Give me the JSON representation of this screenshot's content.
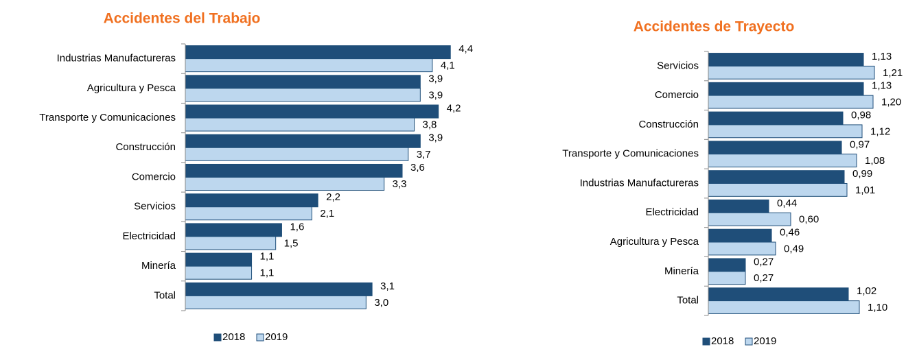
{
  "chart_data": [
    {
      "type": "bar",
      "orientation": "horizontal",
      "title": "Accidentes del Trabajo",
      "categories": [
        "Industrias Manufactureras",
        "Agricultura y Pesca",
        "Transporte y Comunicaciones",
        "Construcción",
        "Comercio",
        "Servicios",
        "Electricidad",
        "Minería",
        "Total"
      ],
      "series": [
        {
          "name": "2018",
          "color": "#1f4e79",
          "values": [
            4.4,
            3.9,
            4.2,
            3.9,
            3.6,
            2.2,
            1.6,
            1.1,
            3.1
          ],
          "value_labels": [
            "4,4",
            "3,9",
            "4,2",
            "3,9",
            "3,6",
            "2,2",
            "1,6",
            "1,1",
            "3,1"
          ]
        },
        {
          "name": "2019",
          "color": "#bdd7ee",
          "values": [
            4.1,
            3.9,
            3.8,
            3.7,
            3.3,
            2.1,
            1.5,
            1.1,
            3.0
          ],
          "value_labels": [
            "4,1",
            "3,9",
            "3,8",
            "3,7",
            "3,3",
            "2,1",
            "1,5",
            "1,1",
            "3,0"
          ]
        }
      ],
      "xlim": [
        0,
        4.5
      ]
    },
    {
      "type": "bar",
      "orientation": "horizontal",
      "title": "Accidentes de Trayecto",
      "categories": [
        "Servicios",
        "Comercio",
        "Construcción",
        "Transporte y Comunicaciones",
        "Industrias Manufactureras",
        "Electricidad",
        "Agricultura y Pesca",
        "Minería",
        "Total"
      ],
      "series": [
        {
          "name": "2018",
          "color": "#1f4e79",
          "values": [
            1.13,
            1.13,
            0.98,
            0.97,
            0.99,
            0.44,
            0.46,
            0.27,
            1.02
          ],
          "value_labels": [
            "1,13",
            "1,13",
            "0,98",
            "0,97",
            "0,99",
            "0,44",
            "0,46",
            "0,27",
            "1,02"
          ]
        },
        {
          "name": "2019",
          "color": "#bdd7ee",
          "values": [
            1.21,
            1.2,
            1.12,
            1.08,
            1.01,
            0.6,
            0.49,
            0.27,
            1.1
          ],
          "value_labels": [
            "1,21",
            "1,20",
            "1,12",
            "1,08",
            "1,01",
            "0,60",
            "0,49",
            "0,27",
            "1,10"
          ]
        }
      ],
      "xlim": [
        0,
        1.25
      ]
    }
  ]
}
